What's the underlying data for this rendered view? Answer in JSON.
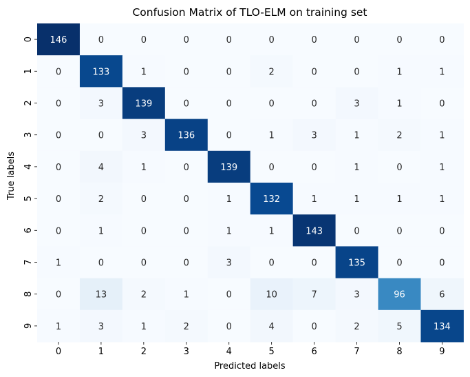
{
  "chart_data": {
    "type": "heatmap",
    "title": "Confusion Matrix of TLO-ELM on training set",
    "xlabel": "Predicted labels",
    "ylabel": "True labels",
    "x_categories": [
      "0",
      "1",
      "2",
      "3",
      "4",
      "5",
      "6",
      "7",
      "8",
      "9"
    ],
    "y_categories": [
      "0",
      "1",
      "2",
      "3",
      "4",
      "5",
      "6",
      "7",
      "8",
      "9"
    ],
    "values": [
      [
        146,
        0,
        0,
        0,
        0,
        0,
        0,
        0,
        0,
        0
      ],
      [
        0,
        133,
        1,
        0,
        0,
        2,
        0,
        0,
        1,
        1
      ],
      [
        0,
        3,
        139,
        0,
        0,
        0,
        0,
        3,
        1,
        0
      ],
      [
        0,
        0,
        3,
        136,
        0,
        1,
        3,
        1,
        2,
        1
      ],
      [
        0,
        4,
        1,
        0,
        139,
        0,
        0,
        1,
        0,
        1
      ],
      [
        0,
        2,
        0,
        0,
        1,
        132,
        1,
        1,
        1,
        1
      ],
      [
        0,
        1,
        0,
        0,
        1,
        1,
        143,
        0,
        0,
        0
      ],
      [
        1,
        0,
        0,
        0,
        3,
        0,
        0,
        135,
        0,
        0
      ],
      [
        0,
        13,
        2,
        1,
        0,
        10,
        7,
        3,
        96,
        6
      ],
      [
        1,
        3,
        1,
        2,
        0,
        4,
        0,
        2,
        5,
        134
      ]
    ],
    "colormap": "Blues",
    "annotations": true,
    "colorbar": false
  }
}
